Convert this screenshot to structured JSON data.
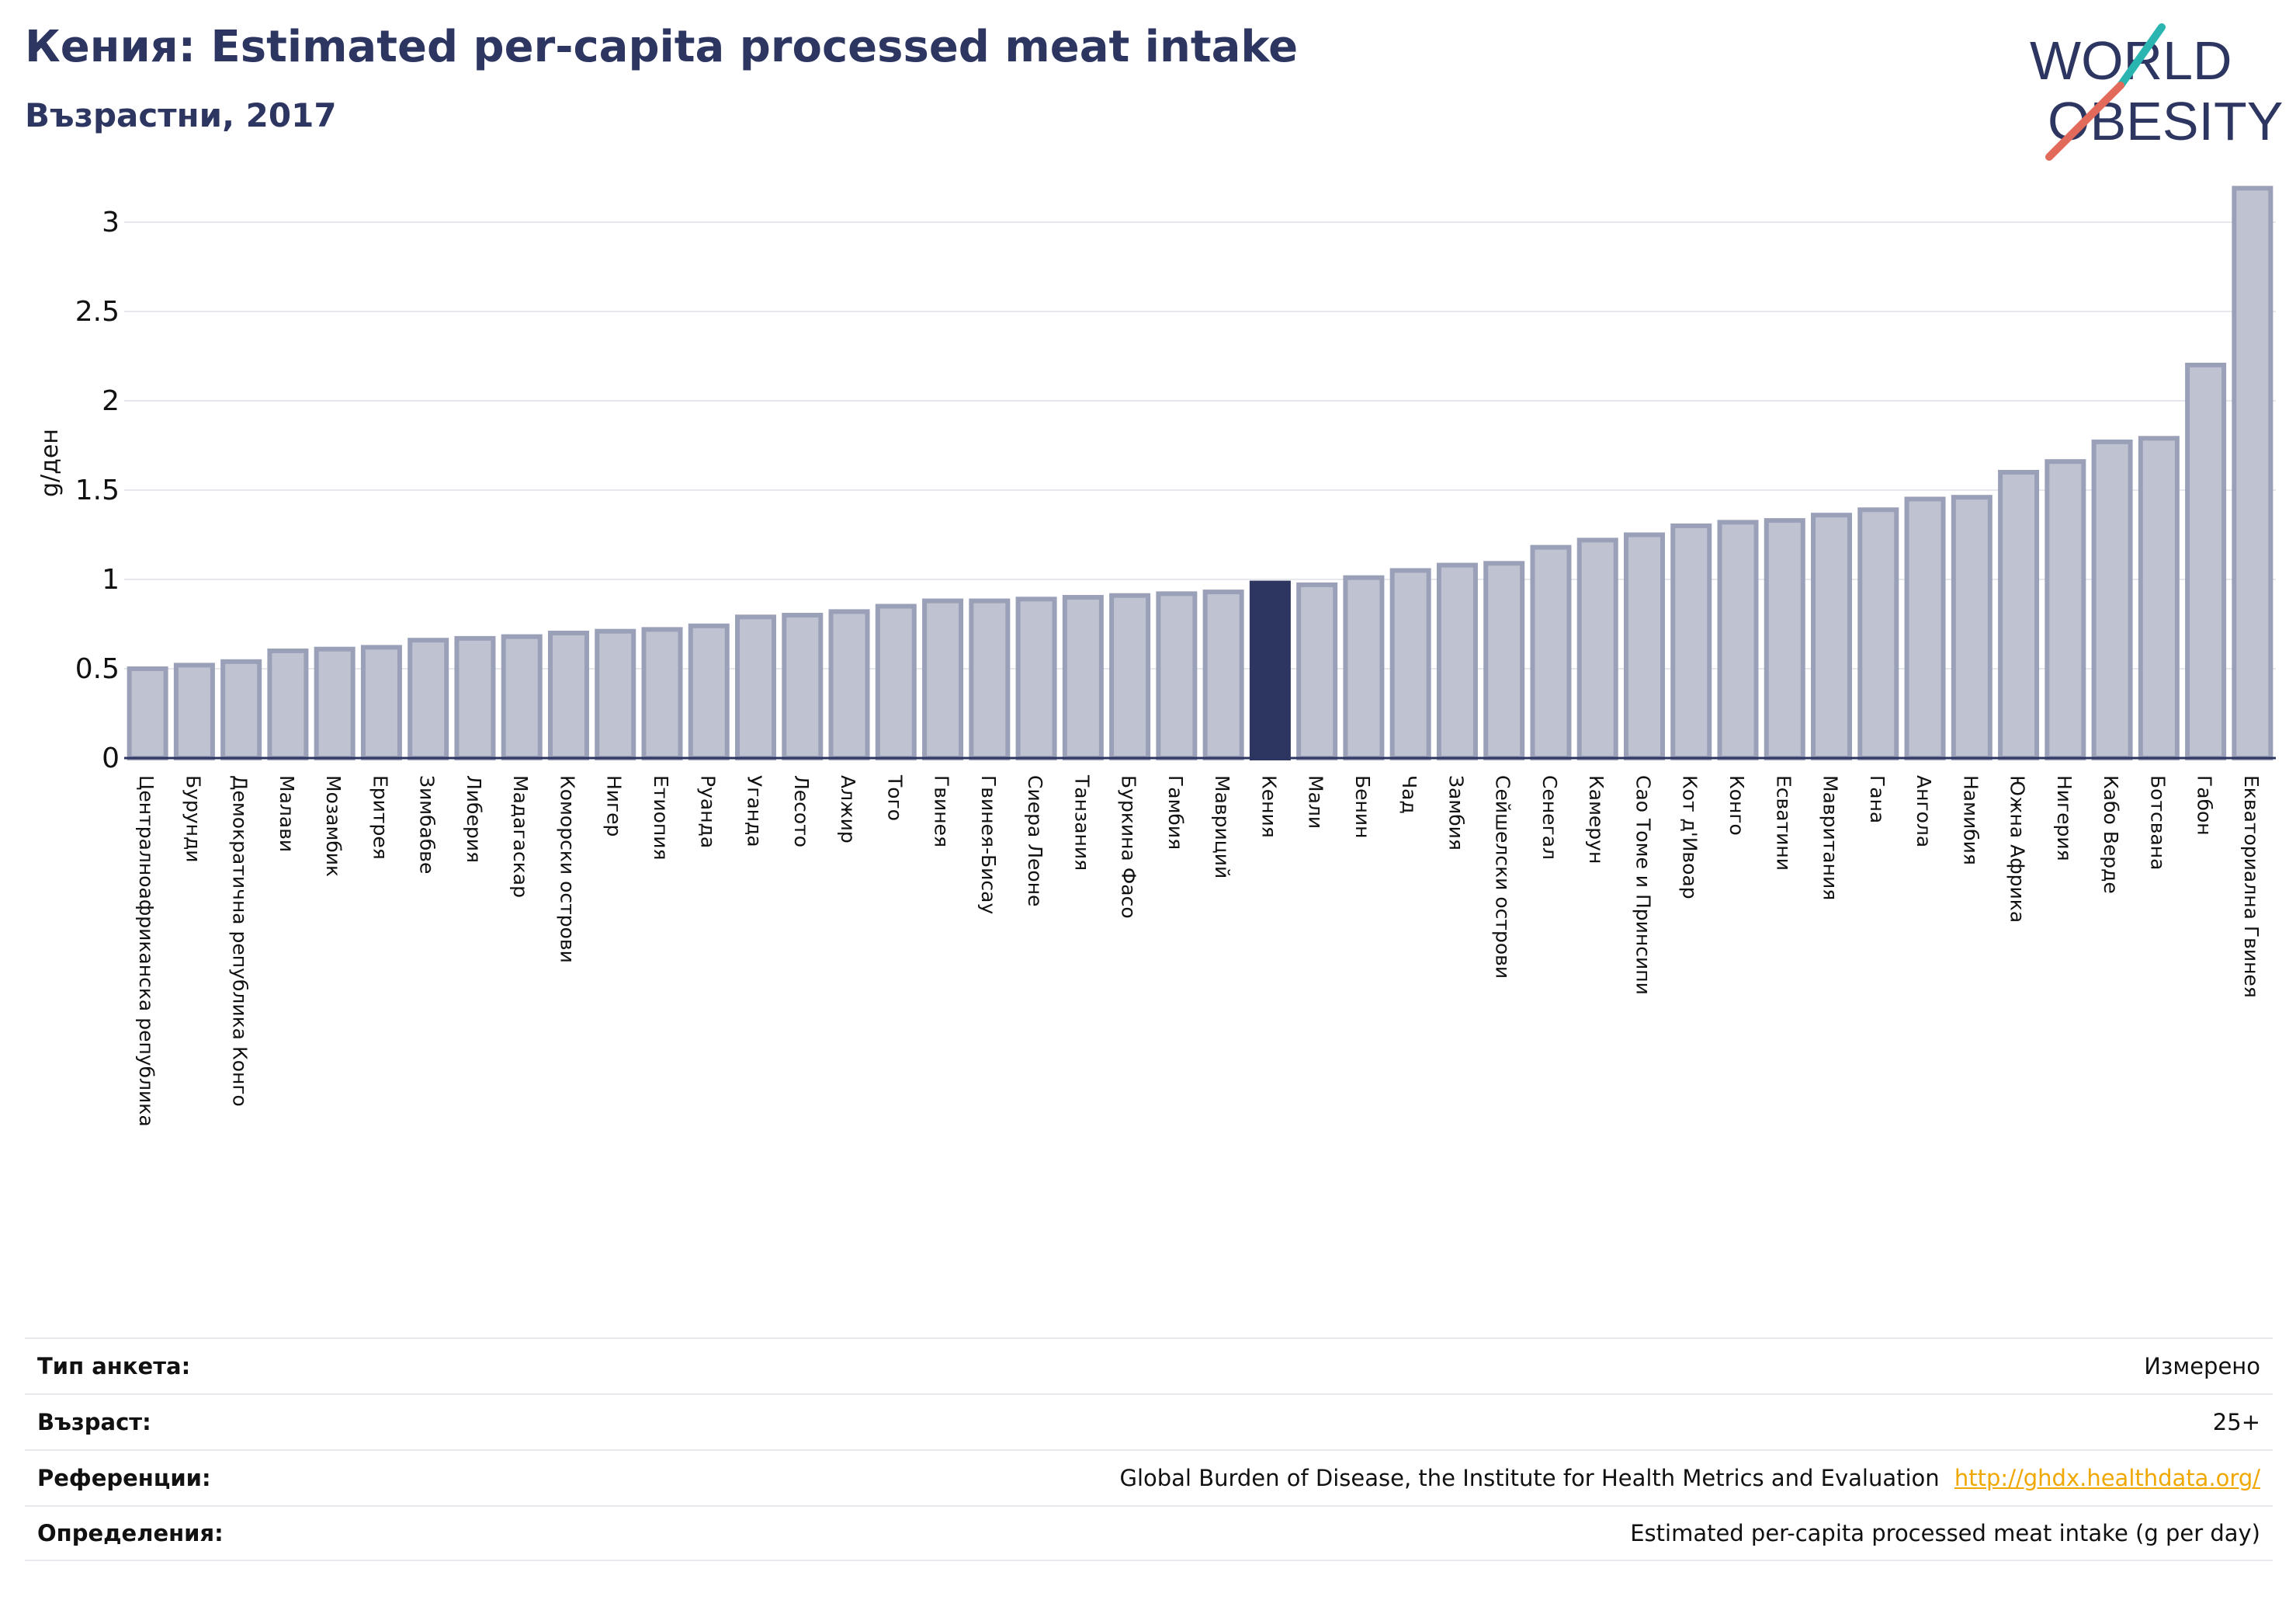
{
  "header": {
    "title": "Кения: Estimated per-capita processed meat intake",
    "subtitle": "Възрастни, 2017"
  },
  "logo": {
    "line1": "WORLD",
    "line2": "OBESITY",
    "icon": "world-obesity-logo"
  },
  "colors": {
    "bar": "#bfc3d1",
    "bar_stroke": "#9aa0b8",
    "highlight": "#2d3661",
    "grid": "#e6e8ee",
    "axis": "#2d3661"
  },
  "chart_data": {
    "type": "bar",
    "title": "Кения: Estimated per-capita processed meat intake",
    "subtitle": "Възрастни, 2017",
    "xlabel": "",
    "ylabel": "g/ден",
    "ylim": [
      0,
      3.2
    ],
    "yticks": [
      "0",
      "0.5",
      "1",
      "1.5",
      "2",
      "2.5",
      "3"
    ],
    "grid": true,
    "highlight": "Кения",
    "categories": [
      "Централноафриканска република",
      "Бурунди",
      "Демократична република Конго",
      "Малави",
      "Мозамбик",
      "Еритрея",
      "Зимбабве",
      "Либерия",
      "Мадагаскар",
      "Коморски острови",
      "Нигер",
      "Етиопия",
      "Руанда",
      "Уганда",
      "Лесото",
      "Алжир",
      "Того",
      "Гвинея",
      "Гвинея-Бисау",
      "Сиера Леоне",
      "Танзания",
      "Буркина Фасо",
      "Гамбия",
      "Мавриций",
      "Кения",
      "Мали",
      "Бенин",
      "Чад",
      "Замбия",
      "Сейшелски острови",
      "Сенегал",
      "Камерун",
      "Сао Томе и Принсипи",
      "Кот д'Ивоар",
      "Конго",
      "Есватини",
      "Мавритания",
      "Гана",
      "Ангола",
      "Намибия",
      "Южна Африка",
      "Нигерия",
      "Кабо Верде",
      "Ботсвана",
      "Габон",
      "Екваториална Гвинея"
    ],
    "values": [
      0.5,
      0.52,
      0.54,
      0.6,
      0.61,
      0.62,
      0.66,
      0.67,
      0.68,
      0.7,
      0.71,
      0.72,
      0.74,
      0.79,
      0.8,
      0.82,
      0.85,
      0.88,
      0.88,
      0.89,
      0.9,
      0.91,
      0.92,
      0.93,
      0.98,
      0.97,
      1.01,
      1.05,
      1.08,
      1.09,
      1.18,
      1.22,
      1.25,
      1.3,
      1.32,
      1.33,
      1.36,
      1.39,
      1.45,
      1.46,
      1.6,
      1.66,
      1.77,
      1.79,
      2.2,
      3.19
    ]
  },
  "info": {
    "rows": [
      {
        "label": "Тип анкета:",
        "value": "Измерено"
      },
      {
        "label": "Възраст:",
        "value": "25+"
      },
      {
        "label": "Референции:",
        "value": "Global Burden of Disease, the Institute for Health Metrics and Evaluation",
        "link": "http://ghdx.healthdata.org/"
      },
      {
        "label": "Определения:",
        "value": "Estimated per-capita processed meat intake (g per day)"
      }
    ]
  }
}
